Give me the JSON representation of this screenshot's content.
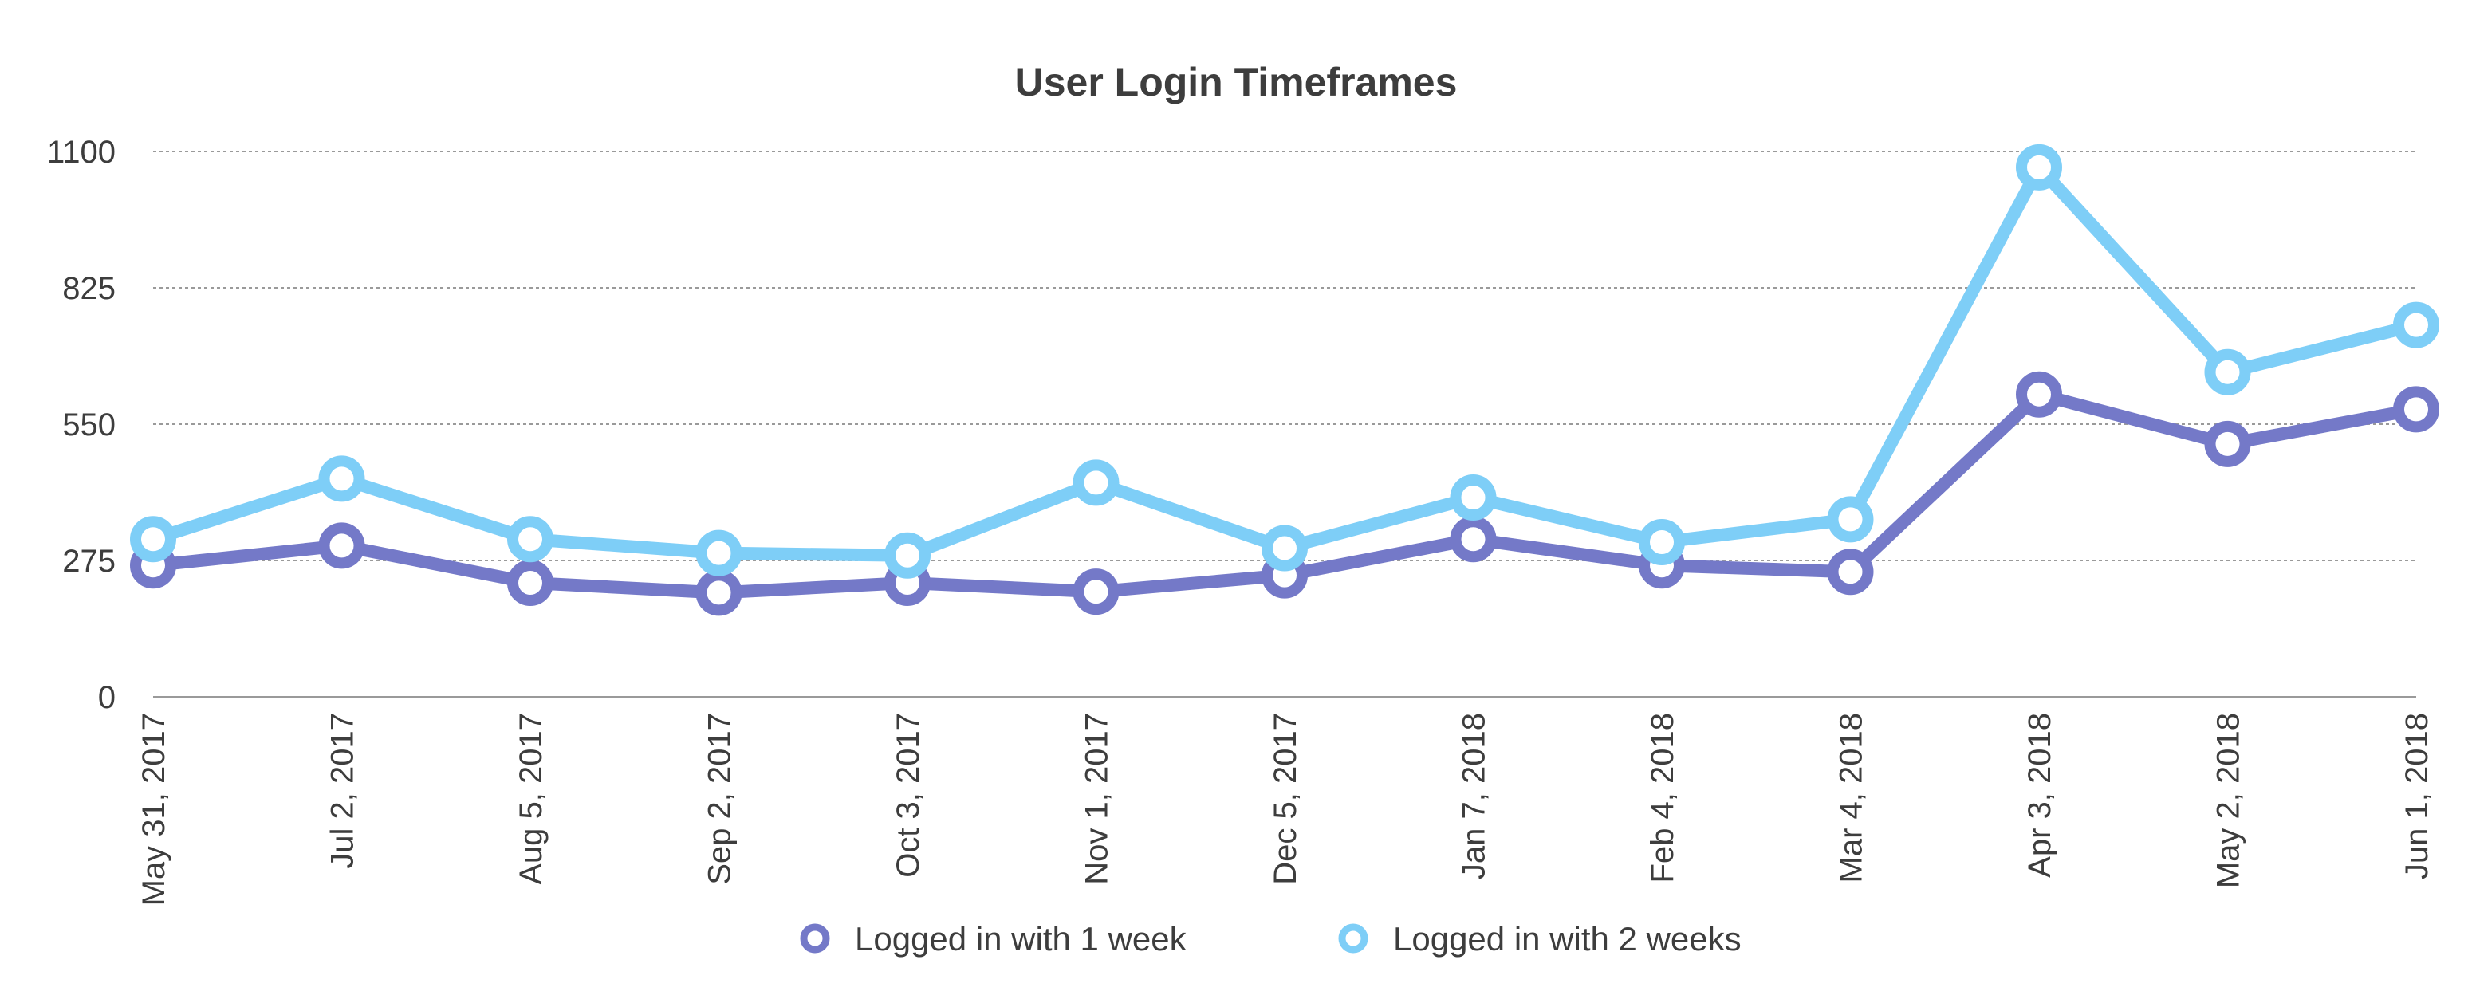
{
  "chart_data": {
    "type": "line",
    "title": "User Login Timeframes",
    "xlabel": "",
    "ylabel": "",
    "ylim": [
      0,
      1100
    ],
    "yticks": [
      "0",
      "275",
      "550",
      "825",
      "1100"
    ],
    "x": [
      "May 31, 2017",
      "Jul 2, 2017",
      "Aug 5, 2017",
      "Sep 2, 2017",
      "Oct 3, 2017",
      "Nov 1, 2017",
      "Dec 5, 2017",
      "Jan 7, 2018",
      "Feb 4, 2018",
      "Mar 4, 2018",
      "Apr 3, 2018",
      "May 2, 2018",
      "Jun 1, 2018"
    ],
    "grid": true,
    "legend": "bottom",
    "series": [
      {
        "name": "Logged in with 1 week",
        "color": "#7479c8",
        "values": [
          265,
          305,
          230,
          210,
          230,
          212,
          245,
          318,
          265,
          252,
          610,
          510,
          580
        ]
      },
      {
        "name": "Logged in with 2 weeks",
        "color": "#7ecef7",
        "values": [
          318,
          440,
          318,
          290,
          285,
          432,
          300,
          402,
          312,
          358,
          1068,
          655,
          750
        ]
      }
    ]
  }
}
